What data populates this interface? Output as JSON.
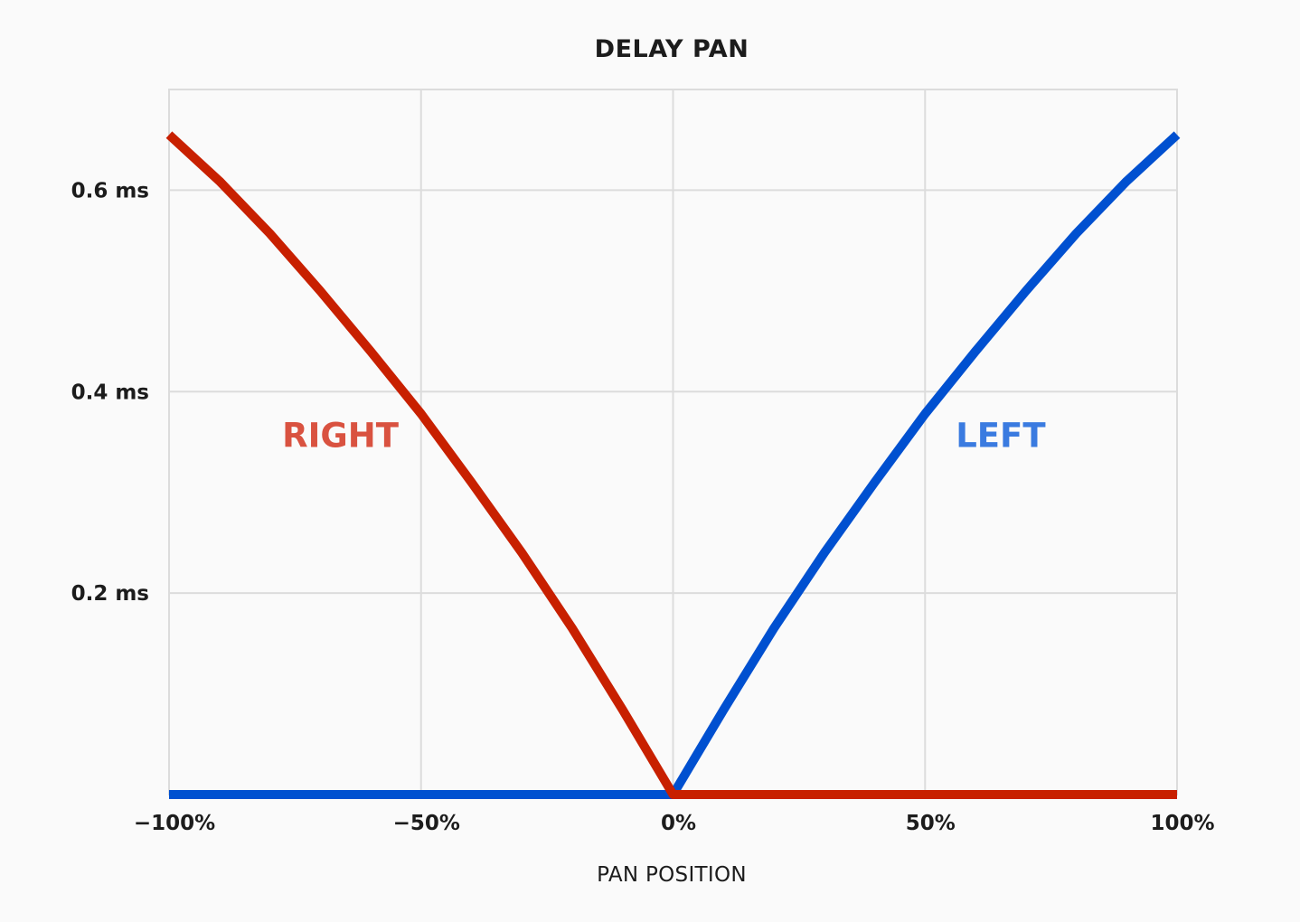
{
  "chart_data": {
    "type": "line",
    "title": "DELAY PAN",
    "xlabel": "PAN POSITION",
    "ylabel": "",
    "xlim": [
      -100,
      100
    ],
    "ylim": [
      0,
      0.7
    ],
    "x_ticks": [
      -100,
      -50,
      0,
      50,
      100
    ],
    "x_tick_labels": [
      "−100%",
      "−50%",
      "0%",
      "50%",
      "100%"
    ],
    "y_ticks": [
      0.2,
      0.4,
      0.6
    ],
    "y_tick_labels": [
      "0.2 ms",
      "0.4 ms",
      "0.6 ms"
    ],
    "grid": true,
    "legend": "none",
    "annotations": [
      {
        "text": "RIGHT",
        "x": -66,
        "y": 0.345,
        "color": "#d95240"
      },
      {
        "text": "LEFT",
        "x": 65,
        "y": 0.345,
        "color": "#3a7be0"
      }
    ],
    "series": [
      {
        "color": "#c82000",
        "x": [
          -100,
          -90,
          -80,
          -70,
          -60,
          -50,
          -40,
          -30,
          -20,
          -10,
          0,
          10,
          20,
          30,
          40,
          50,
          60,
          70,
          80,
          90,
          100
        ],
        "values": [
          0.655,
          0.609,
          0.557,
          0.5,
          0.44,
          0.378,
          0.31,
          0.24,
          0.165,
          0.084,
          0.0,
          0,
          0,
          0,
          0,
          0,
          0,
          0,
          0,
          0,
          0
        ]
      },
      {
        "color": "#0050d0",
        "x": [
          -100,
          -90,
          -80,
          -70,
          -60,
          -50,
          -40,
          -30,
          -20,
          -10,
          0,
          10,
          20,
          30,
          40,
          50,
          60,
          70,
          80,
          90,
          100
        ],
        "values": [
          0,
          0,
          0,
          0,
          0,
          0,
          0,
          0,
          0,
          0,
          0.0,
          0.084,
          0.165,
          0.24,
          0.31,
          0.378,
          0.44,
          0.5,
          0.557,
          0.609,
          0.655
        ]
      }
    ]
  }
}
